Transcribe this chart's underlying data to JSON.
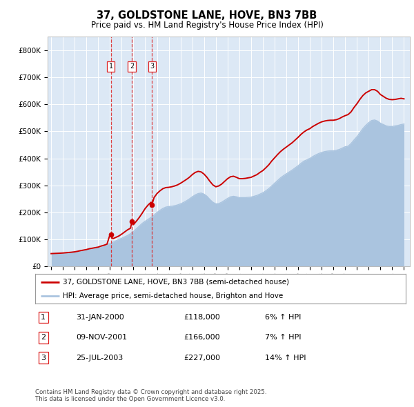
{
  "title": "37, GOLDSTONE LANE, HOVE, BN3 7BB",
  "subtitle": "Price paid vs. HM Land Registry's House Price Index (HPI)",
  "ylabel_ticks": [
    "£0",
    "£100K",
    "£200K",
    "£300K",
    "£400K",
    "£500K",
    "£600K",
    "£700K",
    "£800K"
  ],
  "ylim": [
    0,
    850000
  ],
  "xlim_start": 1994.7,
  "xlim_end": 2025.5,
  "hpi_color": "#aac4df",
  "price_color": "#cc0000",
  "dashed_color": "#dd2222",
  "background_color": "#dce8f5",
  "legend_label_price": "37, GOLDSTONE LANE, HOVE, BN3 7BB (semi-detached house)",
  "legend_label_hpi": "HPI: Average price, semi-detached house, Brighton and Hove",
  "transactions": [
    {
      "num": 1,
      "date": "31-JAN-2000",
      "price": 118000,
      "pct": "6%",
      "x_year": 2000.08
    },
    {
      "num": 2,
      "date": "09-NOV-2001",
      "price": 166000,
      "pct": "7%",
      "x_year": 2001.86
    },
    {
      "num": 3,
      "date": "25-JUL-2003",
      "price": 227000,
      "pct": "14%",
      "x_year": 2003.56
    }
  ],
  "footnote": "Contains HM Land Registry data © Crown copyright and database right 2025.\nThis data is licensed under the Open Government Licence v3.0.",
  "hpi_data": [
    [
      1995.0,
      48000
    ],
    [
      1995.25,
      48500
    ],
    [
      1995.5,
      49000
    ],
    [
      1995.75,
      49500
    ],
    [
      1996.0,
      50000
    ],
    [
      1996.25,
      51000
    ],
    [
      1996.5,
      52000
    ],
    [
      1996.75,
      53000
    ],
    [
      1997.0,
      54000
    ],
    [
      1997.25,
      56000
    ],
    [
      1997.5,
      58000
    ],
    [
      1997.75,
      60000
    ],
    [
      1998.0,
      62000
    ],
    [
      1998.25,
      65000
    ],
    [
      1998.5,
      67000
    ],
    [
      1998.75,
      69000
    ],
    [
      1999.0,
      71000
    ],
    [
      1999.25,
      74000
    ],
    [
      1999.5,
      77000
    ],
    [
      1999.75,
      81000
    ],
    [
      2000.0,
      85000
    ],
    [
      2000.25,
      90000
    ],
    [
      2000.5,
      95000
    ],
    [
      2000.75,
      100000
    ],
    [
      2001.0,
      105000
    ],
    [
      2001.25,
      110000
    ],
    [
      2001.5,
      115000
    ],
    [
      2001.75,
      122000
    ],
    [
      2002.0,
      130000
    ],
    [
      2002.25,
      140000
    ],
    [
      2002.5,
      150000
    ],
    [
      2002.75,
      160000
    ],
    [
      2003.0,
      168000
    ],
    [
      2003.25,
      175000
    ],
    [
      2003.5,
      182000
    ],
    [
      2003.75,
      190000
    ],
    [
      2004.0,
      200000
    ],
    [
      2004.25,
      208000
    ],
    [
      2004.5,
      215000
    ],
    [
      2004.75,
      220000
    ],
    [
      2005.0,
      222000
    ],
    [
      2005.25,
      223000
    ],
    [
      2005.5,
      225000
    ],
    [
      2005.75,
      228000
    ],
    [
      2006.0,
      232000
    ],
    [
      2006.25,
      237000
    ],
    [
      2006.5,
      243000
    ],
    [
      2006.75,
      250000
    ],
    [
      2007.0,
      258000
    ],
    [
      2007.25,
      265000
    ],
    [
      2007.5,
      270000
    ],
    [
      2007.75,
      272000
    ],
    [
      2008.0,
      268000
    ],
    [
      2008.25,
      260000
    ],
    [
      2008.5,
      248000
    ],
    [
      2008.75,
      238000
    ],
    [
      2009.0,
      232000
    ],
    [
      2009.25,
      233000
    ],
    [
      2009.5,
      238000
    ],
    [
      2009.75,
      245000
    ],
    [
      2010.0,
      252000
    ],
    [
      2010.25,
      258000
    ],
    [
      2010.5,
      260000
    ],
    [
      2010.75,
      258000
    ],
    [
      2011.0,
      255000
    ],
    [
      2011.25,
      255000
    ],
    [
      2011.5,
      255000
    ],
    [
      2011.75,
      256000
    ],
    [
      2012.0,
      257000
    ],
    [
      2012.25,
      260000
    ],
    [
      2012.5,
      263000
    ],
    [
      2012.75,
      268000
    ],
    [
      2013.0,
      273000
    ],
    [
      2013.25,
      280000
    ],
    [
      2013.5,
      288000
    ],
    [
      2013.75,
      298000
    ],
    [
      2014.0,
      308000
    ],
    [
      2014.25,
      318000
    ],
    [
      2014.5,
      328000
    ],
    [
      2014.75,
      336000
    ],
    [
      2015.0,
      343000
    ],
    [
      2015.25,
      350000
    ],
    [
      2015.5,
      357000
    ],
    [
      2015.75,
      365000
    ],
    [
      2016.0,
      373000
    ],
    [
      2016.25,
      382000
    ],
    [
      2016.5,
      390000
    ],
    [
      2016.75,
      395000
    ],
    [
      2017.0,
      400000
    ],
    [
      2017.25,
      407000
    ],
    [
      2017.5,
      413000
    ],
    [
      2017.75,
      418000
    ],
    [
      2018.0,
      422000
    ],
    [
      2018.25,
      425000
    ],
    [
      2018.5,
      427000
    ],
    [
      2018.75,
      428000
    ],
    [
      2019.0,
      428000
    ],
    [
      2019.25,
      430000
    ],
    [
      2019.5,
      433000
    ],
    [
      2019.75,
      438000
    ],
    [
      2020.0,
      443000
    ],
    [
      2020.25,
      445000
    ],
    [
      2020.5,
      455000
    ],
    [
      2020.75,
      468000
    ],
    [
      2021.0,
      480000
    ],
    [
      2021.25,
      495000
    ],
    [
      2021.5,
      510000
    ],
    [
      2021.75,
      522000
    ],
    [
      2022.0,
      532000
    ],
    [
      2022.25,
      540000
    ],
    [
      2022.5,
      542000
    ],
    [
      2022.75,
      538000
    ],
    [
      2023.0,
      530000
    ],
    [
      2023.25,
      525000
    ],
    [
      2023.5,
      520000
    ],
    [
      2023.75,
      518000
    ],
    [
      2024.0,
      518000
    ],
    [
      2024.25,
      520000
    ],
    [
      2024.5,
      522000
    ],
    [
      2024.75,
      525000
    ],
    [
      2025.0,
      527000
    ]
  ],
  "price_data": [
    [
      1995.0,
      48000
    ],
    [
      1995.25,
      48500
    ],
    [
      1995.5,
      49000
    ],
    [
      1995.75,
      49500
    ],
    [
      1996.0,
      50200
    ],
    [
      1996.25,
      51200
    ],
    [
      1996.5,
      52200
    ],
    [
      1996.75,
      53200
    ],
    [
      1997.0,
      54500
    ],
    [
      1997.25,
      56500
    ],
    [
      1997.5,
      59000
    ],
    [
      1997.75,
      61000
    ],
    [
      1998.0,
      63000
    ],
    [
      1998.25,
      66000
    ],
    [
      1998.5,
      68000
    ],
    [
      1998.75,
      70000
    ],
    [
      1999.0,
      72000
    ],
    [
      1999.25,
      76000
    ],
    [
      1999.5,
      79000
    ],
    [
      1999.75,
      83000
    ],
    [
      2000.0,
      118000
    ],
    [
      2000.25,
      103000
    ],
    [
      2000.5,
      108000
    ],
    [
      2000.75,
      113000
    ],
    [
      2001.0,
      120000
    ],
    [
      2001.25,
      128000
    ],
    [
      2001.5,
      136000
    ],
    [
      2001.75,
      142000
    ],
    [
      2001.86,
      166000
    ],
    [
      2002.0,
      155000
    ],
    [
      2002.25,
      168000
    ],
    [
      2002.5,
      182000
    ],
    [
      2002.75,
      198000
    ],
    [
      2003.0,
      215000
    ],
    [
      2003.25,
      228000
    ],
    [
      2003.5,
      238000
    ],
    [
      2003.56,
      227000
    ],
    [
      2003.75,
      255000
    ],
    [
      2004.0,
      270000
    ],
    [
      2004.25,
      280000
    ],
    [
      2004.5,
      288000
    ],
    [
      2004.75,
      292000
    ],
    [
      2005.0,
      293000
    ],
    [
      2005.25,
      295000
    ],
    [
      2005.5,
      298000
    ],
    [
      2005.75,
      302000
    ],
    [
      2006.0,
      308000
    ],
    [
      2006.25,
      315000
    ],
    [
      2006.5,
      322000
    ],
    [
      2006.75,
      330000
    ],
    [
      2007.0,
      340000
    ],
    [
      2007.25,
      348000
    ],
    [
      2007.5,
      352000
    ],
    [
      2007.75,
      350000
    ],
    [
      2008.0,
      342000
    ],
    [
      2008.25,
      330000
    ],
    [
      2008.5,
      315000
    ],
    [
      2008.75,
      302000
    ],
    [
      2009.0,
      295000
    ],
    [
      2009.25,
      298000
    ],
    [
      2009.5,
      305000
    ],
    [
      2009.75,
      315000
    ],
    [
      2010.0,
      325000
    ],
    [
      2010.25,
      332000
    ],
    [
      2010.5,
      334000
    ],
    [
      2010.75,
      330000
    ],
    [
      2011.0,
      325000
    ],
    [
      2011.25,
      325000
    ],
    [
      2011.5,
      326000
    ],
    [
      2011.75,
      328000
    ],
    [
      2012.0,
      330000
    ],
    [
      2012.25,
      335000
    ],
    [
      2012.5,
      340000
    ],
    [
      2012.75,
      348000
    ],
    [
      2013.0,
      355000
    ],
    [
      2013.25,
      365000
    ],
    [
      2013.5,
      376000
    ],
    [
      2013.75,
      390000
    ],
    [
      2014.0,
      402000
    ],
    [
      2014.25,
      414000
    ],
    [
      2014.5,
      425000
    ],
    [
      2014.75,
      434000
    ],
    [
      2015.0,
      442000
    ],
    [
      2015.25,
      450000
    ],
    [
      2015.5,
      458000
    ],
    [
      2015.75,
      468000
    ],
    [
      2016.0,
      478000
    ],
    [
      2016.25,
      489000
    ],
    [
      2016.5,
      498000
    ],
    [
      2016.75,
      505000
    ],
    [
      2017.0,
      510000
    ],
    [
      2017.25,
      518000
    ],
    [
      2017.5,
      524000
    ],
    [
      2017.75,
      530000
    ],
    [
      2018.0,
      535000
    ],
    [
      2018.25,
      538000
    ],
    [
      2018.5,
      540000
    ],
    [
      2018.75,
      541000
    ],
    [
      2019.0,
      541000
    ],
    [
      2019.25,
      543000
    ],
    [
      2019.5,
      547000
    ],
    [
      2019.75,
      553000
    ],
    [
      2020.0,
      558000
    ],
    [
      2020.25,
      562000
    ],
    [
      2020.5,
      572000
    ],
    [
      2020.75,
      588000
    ],
    [
      2021.0,
      602000
    ],
    [
      2021.25,
      618000
    ],
    [
      2021.5,
      632000
    ],
    [
      2021.75,
      642000
    ],
    [
      2022.0,
      648000
    ],
    [
      2022.25,
      654000
    ],
    [
      2022.5,
      654000
    ],
    [
      2022.75,
      648000
    ],
    [
      2023.0,
      636000
    ],
    [
      2023.25,
      629000
    ],
    [
      2023.5,
      622000
    ],
    [
      2023.75,
      618000
    ],
    [
      2024.0,
      617000
    ],
    [
      2024.25,
      618000
    ],
    [
      2024.5,
      620000
    ],
    [
      2024.75,
      622000
    ],
    [
      2025.0,
      620000
    ]
  ]
}
